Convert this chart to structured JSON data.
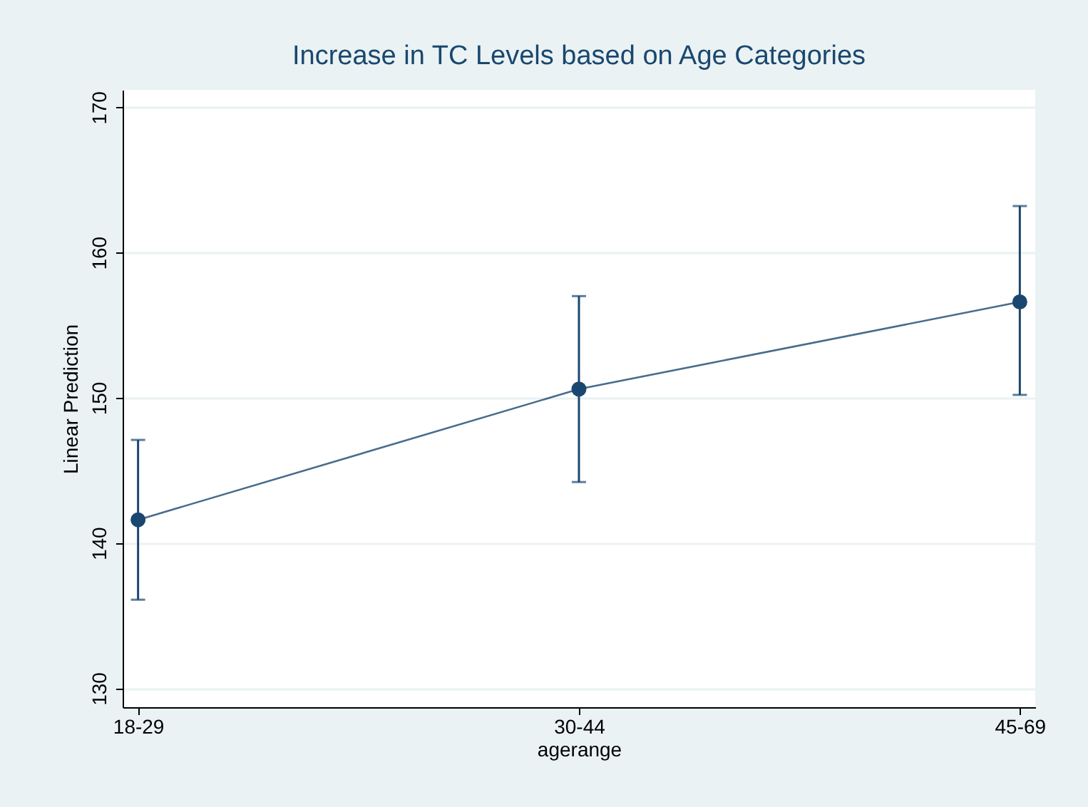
{
  "chart_data": {
    "type": "line",
    "title": "Increase in TC Levels based on Age Categories",
    "xlabel": "agerange",
    "ylabel": "Linear Prediction",
    "categories": [
      "18-29",
      "30-44",
      "45-69"
    ],
    "series": [
      {
        "color": "#1a476f",
        "values": [
          141.6,
          150.6,
          156.6
        ],
        "errors": [
          [
            136.1,
            147.1
          ],
          [
            144.2,
            157.0
          ],
          [
            150.2,
            163.2
          ]
        ]
      }
    ],
    "ylim": [
      128.7,
      171.2
    ],
    "yticks": [
      130,
      140,
      150,
      160,
      170
    ],
    "grid": "y",
    "marker": "circle",
    "line_style": "solid"
  }
}
